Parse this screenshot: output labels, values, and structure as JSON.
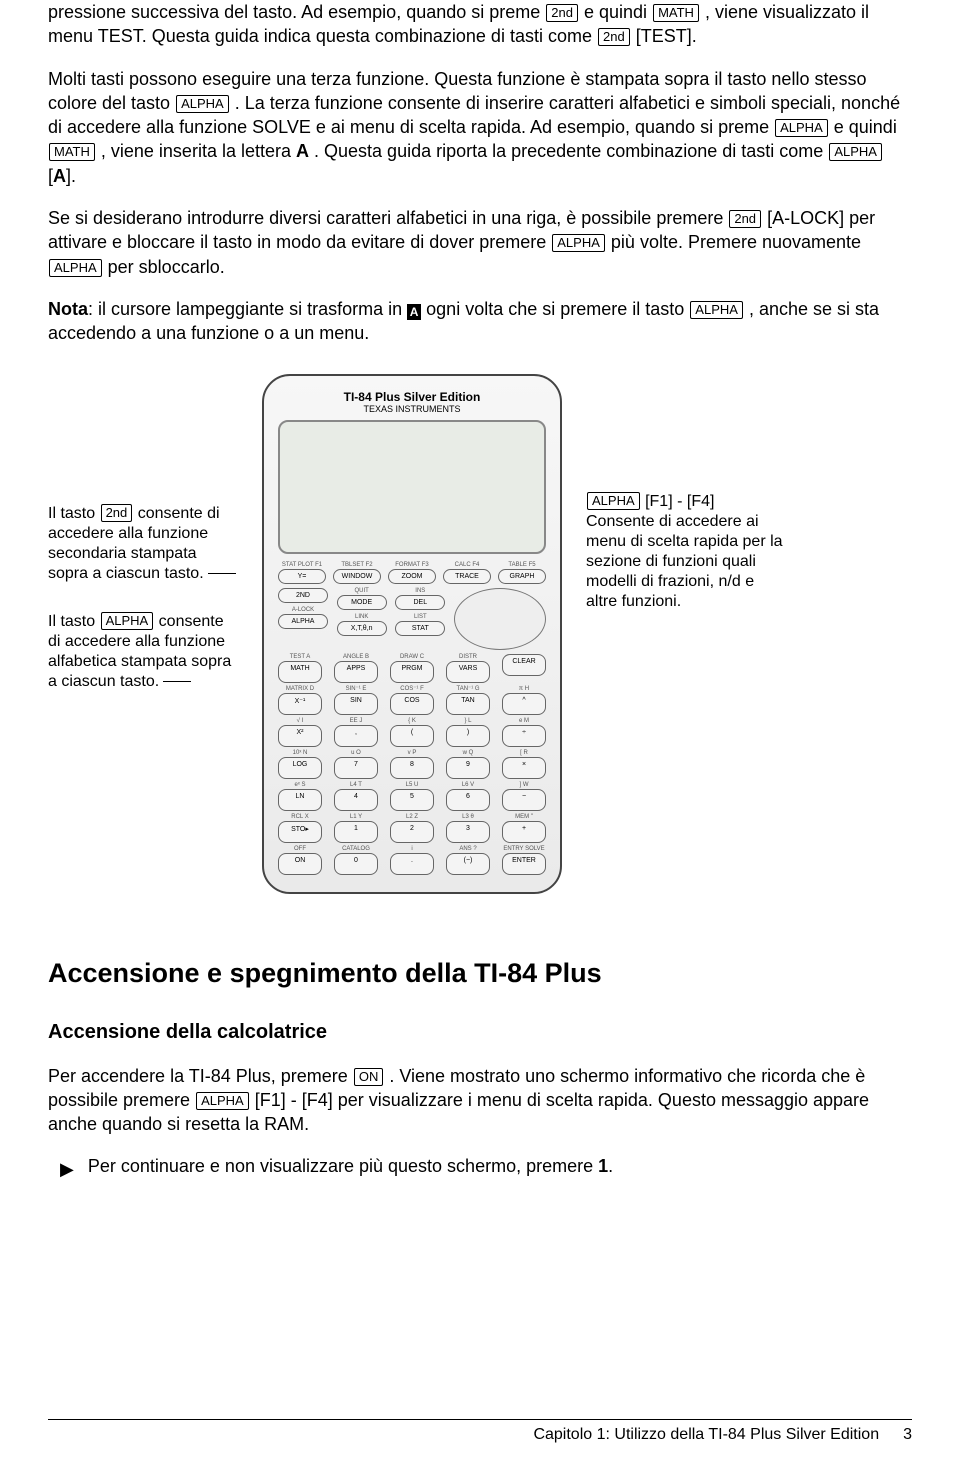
{
  "keys": {
    "second": "2nd",
    "math": "MATH",
    "test": "TEST",
    "alpha": "ALPHA",
    "alock": "A-LOCK",
    "f1": "F1",
    "f4": "F4",
    "on": "ON"
  },
  "para1": {
    "t1": "pressione successiva del tasto. Ad esempio, quando si preme ",
    "t2": " e quindi ",
    "t3": ", viene visualizzato il menu TEST. Questa guida indica questa combinazione di tasti come ",
    "t4": " [",
    "t5": "]."
  },
  "para2": {
    "t1": "Molti tasti possono eseguire una terza funzione. Questa funzione è stampata sopra il tasto nello stesso colore del tasto ",
    "t2": " . La terza funzione consente di inserire caratteri alfabetici e simboli speciali, nonché di accedere alla funzione SOLVE e ai menu di scelta rapida. Ad esempio, quando si preme ",
    "t3": " e quindi ",
    "t4": ", viene inserita la lettera ",
    "letterA": "A",
    "t5": ". Questa guida riporta la precedente combinazione di tasti come ",
    "t6": " [",
    "t7": "]."
  },
  "para3": {
    "t1": "Se si desiderano introdurre diversi caratteri alfabetici in una riga, è possibile premere ",
    "t2": " [",
    "t3": "] per attivare e bloccare il tasto in modo da evitare di dover premere ",
    "t4": " più volte. Premere nuovamente ",
    "t5": " per sbloccarlo."
  },
  "para4": {
    "nota": "Nota",
    "t1": ": il cursore lampeggiante si trasforma in ",
    "cursor": "A",
    "t2": " ogni volta che si premere il tasto ",
    "t3": ", anche se si sta accedendo a una funzione o a un menu."
  },
  "leftnote1": {
    "t1": "Il tasto ",
    "t2": " consente di accedere alla funzione secondaria stampata sopra a ciascun tasto."
  },
  "leftnote2": {
    "t1": "Il tasto ",
    "t2": " consente di accedere alla funzione alfabetica stampata sopra a ciascun tasto."
  },
  "rightnote": {
    "t1": " [",
    "t2": "] - [",
    "t3": "]",
    "body": "Consente di accedere ai menu di scelta rapida per la sezione di funzioni quali modelli di frazioni, n/d e altre funzioni."
  },
  "calc": {
    "title": "TI-84 Plus Silver Edition",
    "sub": "TEXAS INSTRUMENTS",
    "top_labels": [
      "STAT PLOT F1",
      "TBLSET F2",
      "FORMAT F3",
      "CALC F4",
      "TABLE F5"
    ],
    "top_keys": [
      "Y=",
      "WINDOW",
      "ZOOM",
      "TRACE",
      "GRAPH"
    ],
    "rowA_labels_left": [
      "",
      "A-LOCK"
    ],
    "rowA_keys_left": [
      "2ND",
      "ALPHA"
    ],
    "rowA_labels_mid": [
      "QUIT",
      "LINK"
    ],
    "rowA_keys_mid": [
      "MODE",
      "X,T,θ,n"
    ],
    "rowA_labels_r": [
      "INS",
      "LIST"
    ],
    "rowA_keys_r": [
      "DEL",
      "STAT"
    ],
    "row_labels": [
      [
        "TEST A",
        "ANGLE B",
        "DRAW C",
        "DISTR",
        ""
      ],
      [
        "MATRIX D",
        "SIN⁻¹ E",
        "COS⁻¹ F",
        "TAN⁻¹ G",
        "π H"
      ],
      [
        "√ I",
        "EE J",
        "{ K",
        "} L",
        "e M"
      ],
      [
        "10ˣ N",
        "u O",
        "v P",
        "w Q",
        "[ R"
      ],
      [
        "eˣ S",
        "L4 T",
        "L5 U",
        "L6 V",
        "] W"
      ],
      [
        "RCL X",
        "L1 Y",
        "L2 Z",
        "L3 θ",
        "MEM \""
      ],
      [
        "OFF",
        "CATALOG",
        "i",
        "ANS ?",
        "ENTRY SOLVE"
      ]
    ],
    "row_keys": [
      [
        "MATH",
        "APPS",
        "PRGM",
        "VARS",
        "CLEAR"
      ],
      [
        "X⁻¹",
        "SIN",
        "COS",
        "TAN",
        "^"
      ],
      [
        "X²",
        ",",
        "(",
        ")",
        "÷"
      ],
      [
        "LOG",
        "7",
        "8",
        "9",
        "×"
      ],
      [
        "LN",
        "4",
        "5",
        "6",
        "−"
      ],
      [
        "STO▸",
        "1",
        "2",
        "3",
        "+"
      ],
      [
        "ON",
        "0",
        ".",
        "(−)",
        "ENTER"
      ]
    ]
  },
  "h2": "Accensione e spegnimento della TI-84 Plus",
  "h3": "Accensione della calcolatrice",
  "para5": {
    "t1": "Per accendere la TI-84 Plus, premere ",
    "t2": ". Viene mostrato uno schermo informativo che ricorda che è possibile premere ",
    "t3": " [",
    "t4": "] - [",
    "t5": "] per visualizzare i menu di scelta rapida. Questo messaggio appare anche quando si resetta la RAM."
  },
  "bullet": {
    "text": "Per continuare e non visualizzare più questo schermo, premere ",
    "one": "1",
    "dot": "."
  },
  "footer": {
    "chapter": "Capitolo 1: Utilizzo della TI-84 Plus Silver Edition",
    "page": "3"
  }
}
